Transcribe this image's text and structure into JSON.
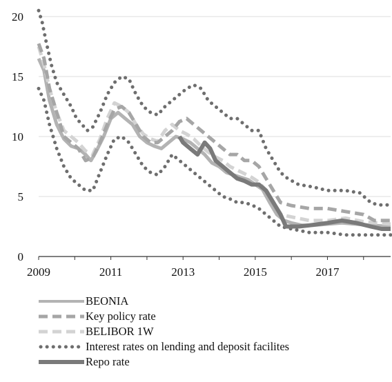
{
  "chart_data": {
    "type": "line",
    "xlim": [
      2009,
      2018.75
    ],
    "ylim": [
      0,
      20
    ],
    "x_ticks": [
      "2009",
      "2011",
      "2013",
      "2015",
      "2017"
    ],
    "y_ticks": [
      "0",
      "5",
      "10",
      "15",
      "20"
    ],
    "grid": true,
    "legend_placement": "bottom",
    "series": [
      {
        "name": "BEONIA",
        "style": "solid",
        "color": "#b3b3b3",
        "points": [
          [
            2009.0,
            16.5
          ],
          [
            2009.15,
            15.5
          ],
          [
            2009.3,
            13.0
          ],
          [
            2009.5,
            11.0
          ],
          [
            2009.7,
            9.8
          ],
          [
            2009.9,
            9.2
          ],
          [
            2010.1,
            9.0
          ],
          [
            2010.3,
            8.5
          ],
          [
            2010.45,
            8.0
          ],
          [
            2010.6,
            8.8
          ],
          [
            2010.8,
            10.0
          ],
          [
            2011.0,
            11.5
          ],
          [
            2011.2,
            12.0
          ],
          [
            2011.4,
            11.5
          ],
          [
            2011.6,
            11.0
          ],
          [
            2011.8,
            10.0
          ],
          [
            2012.0,
            9.5
          ],
          [
            2012.2,
            9.2
          ],
          [
            2012.4,
            9.0
          ],
          [
            2012.6,
            9.5
          ],
          [
            2012.8,
            10.0
          ],
          [
            2013.0,
            9.8
          ],
          [
            2013.2,
            9.5
          ],
          [
            2013.4,
            9.0
          ],
          [
            2013.6,
            8.5
          ],
          [
            2013.8,
            7.8
          ],
          [
            2014.0,
            7.5
          ],
          [
            2014.2,
            7.0
          ],
          [
            2014.4,
            6.8
          ],
          [
            2014.6,
            6.6
          ],
          [
            2014.8,
            6.4
          ],
          [
            2015.0,
            6.0
          ],
          [
            2015.2,
            5.6
          ],
          [
            2015.4,
            4.5
          ],
          [
            2015.6,
            3.5
          ],
          [
            2015.8,
            3.0
          ],
          [
            2016.0,
            2.8
          ],
          [
            2016.3,
            2.6
          ],
          [
            2016.6,
            2.6
          ],
          [
            2017.0,
            2.7
          ],
          [
            2017.4,
            2.8
          ],
          [
            2017.8,
            2.7
          ],
          [
            2018.2,
            2.6
          ],
          [
            2018.75,
            2.5
          ]
        ]
      },
      {
        "name": "Key policy rate",
        "style": "dashed",
        "color": "#a6a6a6",
        "points": [
          [
            2009.0,
            17.75
          ],
          [
            2009.15,
            16.5
          ],
          [
            2009.3,
            14.0
          ],
          [
            2009.5,
            12.0
          ],
          [
            2009.7,
            10.0
          ],
          [
            2009.9,
            9.5
          ],
          [
            2010.1,
            9.0
          ],
          [
            2010.3,
            8.0
          ],
          [
            2010.5,
            8.25
          ],
          [
            2010.7,
            9.5
          ],
          [
            2010.9,
            11.0
          ],
          [
            2011.1,
            12.25
          ],
          [
            2011.3,
            12.5
          ],
          [
            2011.5,
            12.0
          ],
          [
            2011.7,
            11.0
          ],
          [
            2011.9,
            10.0
          ],
          [
            2012.1,
            9.5
          ],
          [
            2012.3,
            9.5
          ],
          [
            2012.5,
            10.0
          ],
          [
            2012.7,
            10.5
          ],
          [
            2012.9,
            11.25
          ],
          [
            2013.1,
            11.5
          ],
          [
            2013.3,
            11.0
          ],
          [
            2013.5,
            10.5
          ],
          [
            2013.7,
            10.0
          ],
          [
            2013.9,
            9.5
          ],
          [
            2014.1,
            9.0
          ],
          [
            2014.3,
            8.5
          ],
          [
            2014.5,
            8.5
          ],
          [
            2014.7,
            8.0
          ],
          [
            2014.9,
            8.0
          ],
          [
            2015.1,
            7.5
          ],
          [
            2015.3,
            6.5
          ],
          [
            2015.5,
            5.5
          ],
          [
            2015.7,
            4.5
          ],
          [
            2016.0,
            4.25
          ],
          [
            2016.5,
            4.0
          ],
          [
            2017.0,
            4.0
          ],
          [
            2017.5,
            3.75
          ],
          [
            2018.0,
            3.5
          ],
          [
            2018.3,
            3.0
          ],
          [
            2018.75,
            3.0
          ]
        ]
      },
      {
        "name": "BELIBOR 1W",
        "style": "dashed",
        "color": "#d3d3d3",
        "points": [
          [
            2009.0,
            17.5
          ],
          [
            2009.15,
            16.0
          ],
          [
            2009.3,
            14.0
          ],
          [
            2009.5,
            12.0
          ],
          [
            2009.7,
            10.5
          ],
          [
            2009.9,
            10.0
          ],
          [
            2010.1,
            9.5
          ],
          [
            2010.3,
            8.8
          ],
          [
            2010.5,
            8.5
          ],
          [
            2010.7,
            9.8
          ],
          [
            2010.9,
            11.5
          ],
          [
            2011.1,
            12.8
          ],
          [
            2011.3,
            12.5
          ],
          [
            2011.5,
            12.0
          ],
          [
            2011.7,
            11.0
          ],
          [
            2011.9,
            10.2
          ],
          [
            2012.1,
            9.8
          ],
          [
            2012.3,
            9.6
          ],
          [
            2012.5,
            10.5
          ],
          [
            2012.7,
            11.0
          ],
          [
            2012.9,
            10.5
          ],
          [
            2013.1,
            10.2
          ],
          [
            2013.3,
            9.8
          ],
          [
            2013.5,
            9.2
          ],
          [
            2013.7,
            8.7
          ],
          [
            2013.9,
            8.3
          ],
          [
            2014.1,
            8.0
          ],
          [
            2014.3,
            7.5
          ],
          [
            2014.5,
            7.2
          ],
          [
            2014.7,
            6.9
          ],
          [
            2014.9,
            6.6
          ],
          [
            2015.1,
            6.2
          ],
          [
            2015.3,
            5.5
          ],
          [
            2015.5,
            4.5
          ],
          [
            2015.7,
            3.5
          ],
          [
            2016.0,
            3.3
          ],
          [
            2016.5,
            3.0
          ],
          [
            2017.0,
            3.0
          ],
          [
            2017.5,
            3.2
          ],
          [
            2018.0,
            2.9
          ],
          [
            2018.75,
            2.7
          ]
        ]
      },
      {
        "name": "Interest rates on lending and deposit facilites",
        "style": "dotted",
        "color": "#6e6e6e",
        "points": [
          [
            2009.0,
            20.5
          ],
          [
            2009.1,
            19.5
          ],
          [
            2009.2,
            18.0
          ],
          [
            2009.35,
            16.0
          ],
          [
            2009.5,
            14.5
          ],
          [
            2009.7,
            13.5
          ],
          [
            2009.9,
            12.5
          ],
          [
            2010.05,
            11.5
          ],
          [
            2010.2,
            11.0
          ],
          [
            2010.35,
            10.5
          ],
          [
            2010.5,
            10.8
          ],
          [
            2010.7,
            12.0
          ],
          [
            2010.9,
            13.5
          ],
          [
            2011.1,
            14.5
          ],
          [
            2011.3,
            15.0
          ],
          [
            2011.5,
            14.8
          ],
          [
            2011.7,
            13.5
          ],
          [
            2011.9,
            12.5
          ],
          [
            2012.1,
            12.0
          ],
          [
            2012.3,
            11.8
          ],
          [
            2012.5,
            12.5
          ],
          [
            2012.7,
            13.0
          ],
          [
            2012.9,
            13.5
          ],
          [
            2013.1,
            14.0
          ],
          [
            2013.3,
            14.3
          ],
          [
            2013.5,
            14.0
          ],
          [
            2013.7,
            13.0
          ],
          [
            2013.9,
            12.5
          ],
          [
            2014.1,
            12.0
          ],
          [
            2014.3,
            11.5
          ],
          [
            2014.5,
            11.5
          ],
          [
            2014.7,
            11.0
          ],
          [
            2014.9,
            10.5
          ],
          [
            2015.1,
            10.5
          ],
          [
            2015.3,
            9.0
          ],
          [
            2015.5,
            8.0
          ],
          [
            2015.7,
            7.0
          ],
          [
            2015.9,
            6.5
          ],
          [
            2016.2,
            6.0
          ],
          [
            2016.6,
            5.8
          ],
          [
            2017.0,
            5.5
          ],
          [
            2017.5,
            5.5
          ],
          [
            2017.9,
            5.3
          ],
          [
            2018.2,
            4.5
          ],
          [
            2018.4,
            4.3
          ],
          [
            2018.75,
            4.3
          ]
        ]
      },
      {
        "name": "",
        "style": "dotted",
        "color": "#6e6e6e",
        "points": [
          [
            2009.0,
            14.0
          ],
          [
            2009.15,
            13.0
          ],
          [
            2009.3,
            11.0
          ],
          [
            2009.5,
            9.0
          ],
          [
            2009.7,
            7.5
          ],
          [
            2009.9,
            6.5
          ],
          [
            2010.1,
            6.0
          ],
          [
            2010.3,
            5.5
          ],
          [
            2010.5,
            5.5
          ],
          [
            2010.7,
            7.0
          ],
          [
            2010.9,
            8.5
          ],
          [
            2011.1,
            9.8
          ],
          [
            2011.3,
            10.0
          ],
          [
            2011.5,
            9.5
          ],
          [
            2011.7,
            8.5
          ],
          [
            2011.9,
            7.5
          ],
          [
            2012.1,
            7.0
          ],
          [
            2012.3,
            6.8
          ],
          [
            2012.5,
            7.5
          ],
          [
            2012.7,
            8.5
          ],
          [
            2012.9,
            8.0
          ],
          [
            2013.1,
            7.5
          ],
          [
            2013.3,
            7.0
          ],
          [
            2013.5,
            6.5
          ],
          [
            2013.7,
            6.0
          ],
          [
            2013.9,
            5.5
          ],
          [
            2014.1,
            5.0
          ],
          [
            2014.3,
            4.8
          ],
          [
            2014.5,
            4.5
          ],
          [
            2014.7,
            4.5
          ],
          [
            2014.9,
            4.3
          ],
          [
            2015.1,
            4.0
          ],
          [
            2015.3,
            3.5
          ],
          [
            2015.5,
            3.0
          ],
          [
            2015.7,
            2.5
          ],
          [
            2016.0,
            2.3
          ],
          [
            2016.5,
            2.0
          ],
          [
            2017.0,
            2.0
          ],
          [
            2017.5,
            1.8
          ],
          [
            2018.0,
            1.8
          ],
          [
            2018.4,
            1.8
          ],
          [
            2018.75,
            1.8
          ]
        ]
      },
      {
        "name": "Repo rate",
        "style": "solid-thick",
        "color": "#7a7a7a",
        "points": [
          [
            2012.9,
            10.0
          ],
          [
            2013.0,
            9.5
          ],
          [
            2013.2,
            9.0
          ],
          [
            2013.4,
            8.5
          ],
          [
            2013.6,
            9.5
          ],
          [
            2013.75,
            9.0
          ],
          [
            2013.9,
            8.0
          ],
          [
            2014.1,
            7.5
          ],
          [
            2014.3,
            7.0
          ],
          [
            2014.5,
            6.5
          ],
          [
            2014.7,
            6.3
          ],
          [
            2014.9,
            6.0
          ],
          [
            2015.1,
            6.0
          ],
          [
            2015.3,
            5.5
          ],
          [
            2015.5,
            4.5
          ],
          [
            2015.7,
            3.5
          ],
          [
            2015.85,
            2.5
          ],
          [
            2016.2,
            2.5
          ],
          [
            2016.5,
            2.6
          ],
          [
            2017.0,
            2.8
          ],
          [
            2017.4,
            3.0
          ],
          [
            2017.8,
            2.8
          ],
          [
            2018.2,
            2.5
          ],
          [
            2018.5,
            2.3
          ],
          [
            2018.75,
            2.3
          ]
        ]
      }
    ]
  },
  "legend": {
    "items": [
      {
        "label": "BEONIA",
        "style": "solid"
      },
      {
        "label": "Key policy rate",
        "style": "dashed"
      },
      {
        "label": "BELIBOR 1W",
        "style": "dashed-light"
      },
      {
        "label": "Interest rates on lending and deposit facilites",
        "style": "dotted"
      },
      {
        "label": "Repo rate",
        "style": "solid-thick"
      }
    ]
  }
}
